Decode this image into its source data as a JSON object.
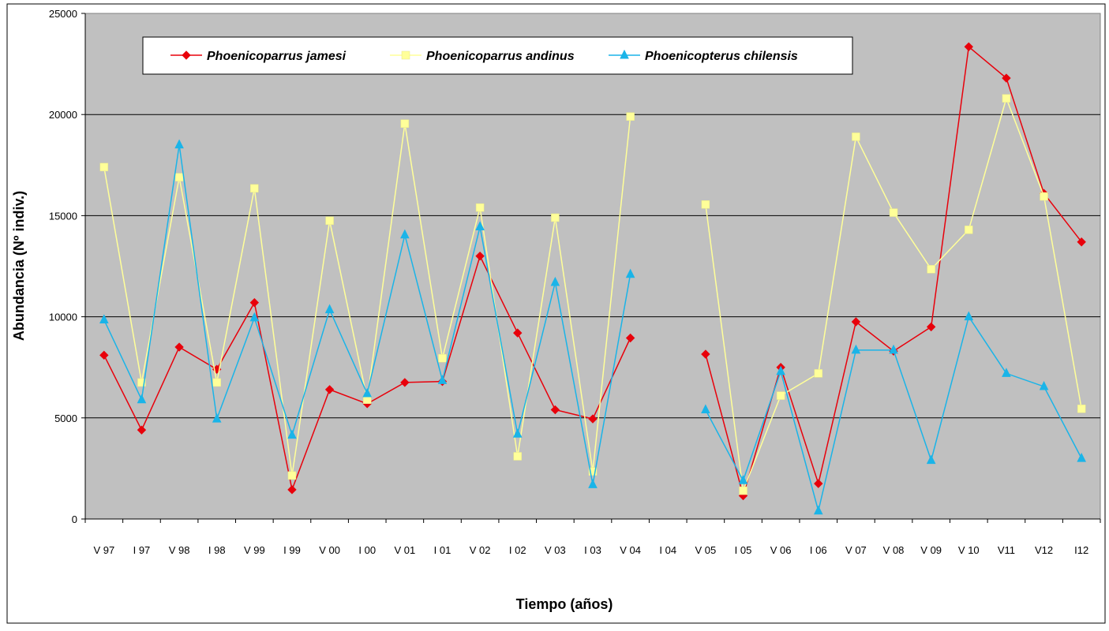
{
  "chart_data": {
    "type": "line",
    "title": "",
    "xlabel": "Tiempo (años)",
    "ylabel": "Abundancia (Nº indiv.)",
    "ylim": [
      0,
      25000
    ],
    "yticks": [
      "0",
      "5000",
      "10000",
      "15000",
      "20000",
      "25000"
    ],
    "grid": true,
    "legend_position": "top",
    "background": "#c0c0c0",
    "categories": [
      "V 97",
      "I 97",
      "V 98",
      "I 98",
      "V 99",
      "I 99",
      "V 00",
      "I 00",
      "V 01",
      "I 01",
      "V 02",
      "I 02",
      "V 03",
      "I 03",
      "V 04",
      "I 04",
      "V 05",
      "I 05",
      "V 06",
      "I 06",
      "V 07",
      "V 08",
      "V 09",
      "V 10",
      "V11",
      "V12",
      "I12"
    ],
    "series": [
      {
        "name": "Phoenicoparrus jamesi",
        "color": "#e8000b",
        "marker": "diamond",
        "values": [
          8100,
          4400,
          8500,
          7400,
          10700,
          1450,
          6400,
          5700,
          6750,
          6800,
          13000,
          9200,
          5400,
          4950,
          8950,
          null,
          8150,
          1150,
          7500,
          1750,
          9750,
          8300,
          9500,
          23350,
          21800,
          16100,
          13700
        ]
      },
      {
        "name": "Phoenicoparrus andinus",
        "color": "#ffff99",
        "marker": "square",
        "values": [
          17400,
          6750,
          16900,
          6750,
          16350,
          2150,
          14750,
          5900,
          19550,
          7950,
          15400,
          3100,
          14900,
          2350,
          19900,
          null,
          15550,
          1400,
          6100,
          7200,
          18900,
          15150,
          12350,
          14300,
          20800,
          15950,
          5450
        ]
      },
      {
        "name": "Phoenicopterus chilensis",
        "color": "#1ab4e8",
        "marker": "triangle",
        "values": [
          9850,
          5900,
          18500,
          4950,
          9950,
          4150,
          10350,
          6200,
          14050,
          6850,
          14450,
          4200,
          11700,
          1700,
          12100,
          null,
          5400,
          1900,
          7300,
          400,
          8350,
          8350,
          2900,
          10000,
          7200,
          6550,
          3000
        ]
      }
    ]
  }
}
